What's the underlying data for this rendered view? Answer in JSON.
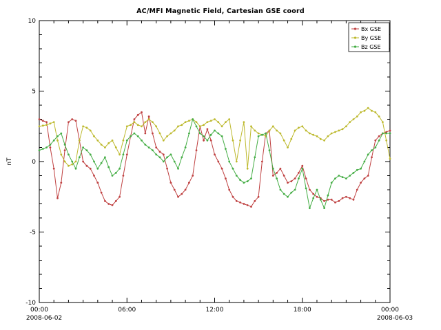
{
  "window": {
    "title": "AC/MFI Magnetic Field, Cartesian GSE coord"
  },
  "chart_data": {
    "type": "line",
    "title": "AC/MFI Magnetic Field, Cartesian GSE coord",
    "xlabel": "",
    "ylabel": "nT",
    "ylim": [
      -10,
      10
    ],
    "y_major_ticks": [
      -10,
      -5,
      0,
      5,
      10
    ],
    "x_hours_start": 0,
    "x_hours_end": 24,
    "x_step_hours": 0.25,
    "x_major_tick_labels": [
      "00:00",
      "06:00",
      "12:00",
      "18:00",
      "00:00"
    ],
    "x_date_labels": {
      "start": "2008-06-02",
      "end": "2008-06-03"
    },
    "grid": false,
    "legend_position": "top-right",
    "series": [
      {
        "name": "Bx GSE",
        "color": "#bf4040",
        "values": [
          3.0,
          2.9,
          2.8,
          1.0,
          -0.5,
          -2.6,
          -1.5,
          0.8,
          2.8,
          3.0,
          2.9,
          1.5,
          0.0,
          -0.3,
          -0.5,
          -1.0,
          -1.5,
          -2.2,
          -2.8,
          -3.0,
          -3.1,
          -2.8,
          -2.5,
          -1.0,
          0.5,
          1.8,
          3.0,
          3.3,
          3.5,
          2.0,
          3.2,
          2.0,
          1.0,
          0.7,
          0.5,
          -0.5,
          -1.5,
          -2.0,
          -2.5,
          -2.3,
          -2.0,
          -1.5,
          -1.0,
          0.8,
          2.5,
          1.5,
          2.3,
          1.5,
          0.5,
          0.0,
          -0.5,
          -1.2,
          -2.0,
          -2.5,
          -2.8,
          -2.9,
          -3.0,
          -3.1,
          -3.2,
          -2.8,
          -2.5,
          0.0,
          2.0,
          2.2,
          -1.0,
          -0.8,
          -0.5,
          -1.0,
          -1.5,
          -1.4,
          -1.2,
          -0.8,
          -0.3,
          -1.2,
          -2.0,
          -2.3,
          -2.5,
          -2.6,
          -2.8,
          -2.7,
          -2.7,
          -2.9,
          -2.8,
          -2.6,
          -2.5,
          -2.6,
          -2.7,
          -2.0,
          -1.5,
          -1.2,
          -1.0,
          0.3,
          1.5,
          1.8,
          2.0,
          2.1,
          2.2
        ]
      },
      {
        "name": "By GSE",
        "color": "#bdb92d",
        "values": [
          2.5,
          2.55,
          2.6,
          2.7,
          2.8,
          1.5,
          0.5,
          0.0,
          -0.3,
          -0.2,
          0.0,
          1.5,
          2.5,
          2.4,
          2.2,
          1.8,
          1.5,
          1.2,
          1.0,
          1.3,
          1.5,
          1.0,
          0.5,
          1.5,
          2.5,
          2.6,
          2.8,
          2.6,
          2.5,
          2.8,
          3.0,
          2.8,
          2.5,
          2.0,
          1.5,
          1.8,
          2.0,
          2.2,
          2.5,
          2.6,
          2.8,
          2.9,
          3.0,
          2.8,
          2.5,
          2.6,
          2.8,
          2.9,
          3.0,
          2.8,
          2.5,
          2.8,
          3.0,
          1.5,
          0.0,
          1.5,
          2.8,
          -0.5,
          2.5,
          2.2,
          2.0,
          1.9,
          1.8,
          2.2,
          2.5,
          2.2,
          2.0,
          1.5,
          1.0,
          1.6,
          2.2,
          2.4,
          2.5,
          2.2,
          2.0,
          1.9,
          1.8,
          1.6,
          1.5,
          1.8,
          2.0,
          2.1,
          2.2,
          2.3,
          2.5,
          2.8,
          3.0,
          3.2,
          3.5,
          3.6,
          3.8,
          3.6,
          3.5,
          3.2,
          2.8,
          1.5,
          0.2
        ]
      },
      {
        "name": "Bz GSE",
        "color": "#44ad44",
        "values": [
          0.8,
          0.9,
          1.0,
          1.2,
          1.5,
          1.8,
          2.0,
          1.2,
          0.5,
          0.0,
          -0.5,
          0.3,
          1.0,
          0.8,
          0.5,
          0.0,
          -0.5,
          -0.1,
          0.3,
          -0.4,
          -1.0,
          -0.8,
          -0.5,
          0.5,
          1.5,
          1.8,
          2.0,
          1.8,
          1.5,
          1.2,
          1.0,
          0.8,
          0.5,
          0.3,
          0.0,
          0.3,
          0.5,
          0.0,
          -0.5,
          0.3,
          1.0,
          2.0,
          3.0,
          2.5,
          2.0,
          1.8,
          1.5,
          1.9,
          2.2,
          2.0,
          1.8,
          0.9,
          0.0,
          -0.5,
          -1.0,
          -1.3,
          -1.5,
          -1.4,
          -1.2,
          0.3,
          1.8,
          1.9,
          2.0,
          0.8,
          -0.5,
          -1.2,
          -2.0,
          -2.3,
          -2.5,
          -2.2,
          -2.0,
          -1.2,
          -0.5,
          -1.9,
          -3.3,
          -2.6,
          -2.0,
          -2.7,
          -3.3,
          -2.4,
          -1.5,
          -1.2,
          -1.0,
          -1.1,
          -1.2,
          -1.0,
          -0.8,
          -0.6,
          -0.5,
          0.0,
          0.5,
          0.8,
          1.0,
          1.5,
          2.0,
          2.0,
          2.0
        ]
      }
    ]
  }
}
